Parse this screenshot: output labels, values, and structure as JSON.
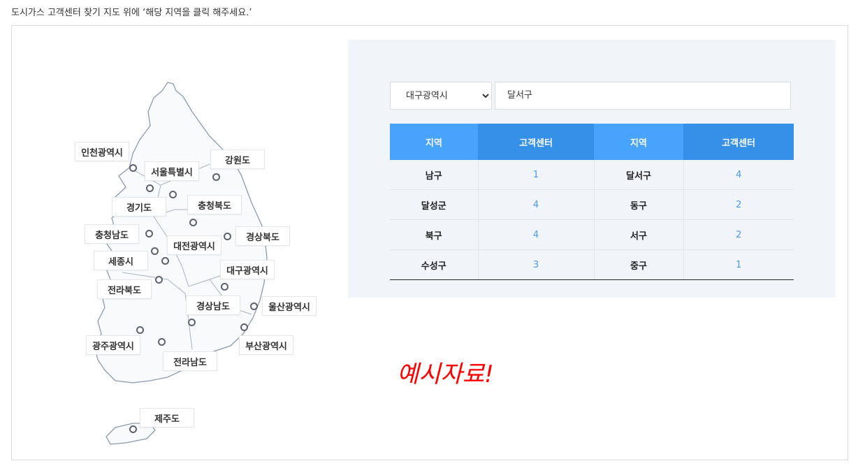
{
  "intro": "도시가스 고객센터 찾기 지도 위에 ‘해당 지역을 클릭 해주세요.’",
  "map": {
    "regions": [
      "인천광역시",
      "서울특별시",
      "강원도",
      "경기도",
      "충청북도",
      "충청남도",
      "경상북도",
      "대전광역시",
      "세종시",
      "대구광역시",
      "전라북도",
      "경상남도",
      "울산광역시",
      "광주광역시",
      "부산광역시",
      "전라남도",
      "제주도"
    ]
  },
  "search": {
    "city": "대구광역시",
    "district": "달서구"
  },
  "table": {
    "headers": [
      "지역",
      "고객센터",
      "지역",
      "고객센터"
    ],
    "rows": [
      [
        "남구",
        "1",
        "달서구",
        "4"
      ],
      [
        "달성군",
        "4",
        "동구",
        "2"
      ],
      [
        "북구",
        "4",
        "서구",
        "2"
      ],
      [
        "수성구",
        "3",
        "중구",
        "1"
      ]
    ]
  },
  "example_note": "예시자료!",
  "colors": {
    "header_light": "#48a3fc",
    "header_dark": "#3590e8",
    "count": "#4a9af5",
    "note": "#ff0000"
  }
}
